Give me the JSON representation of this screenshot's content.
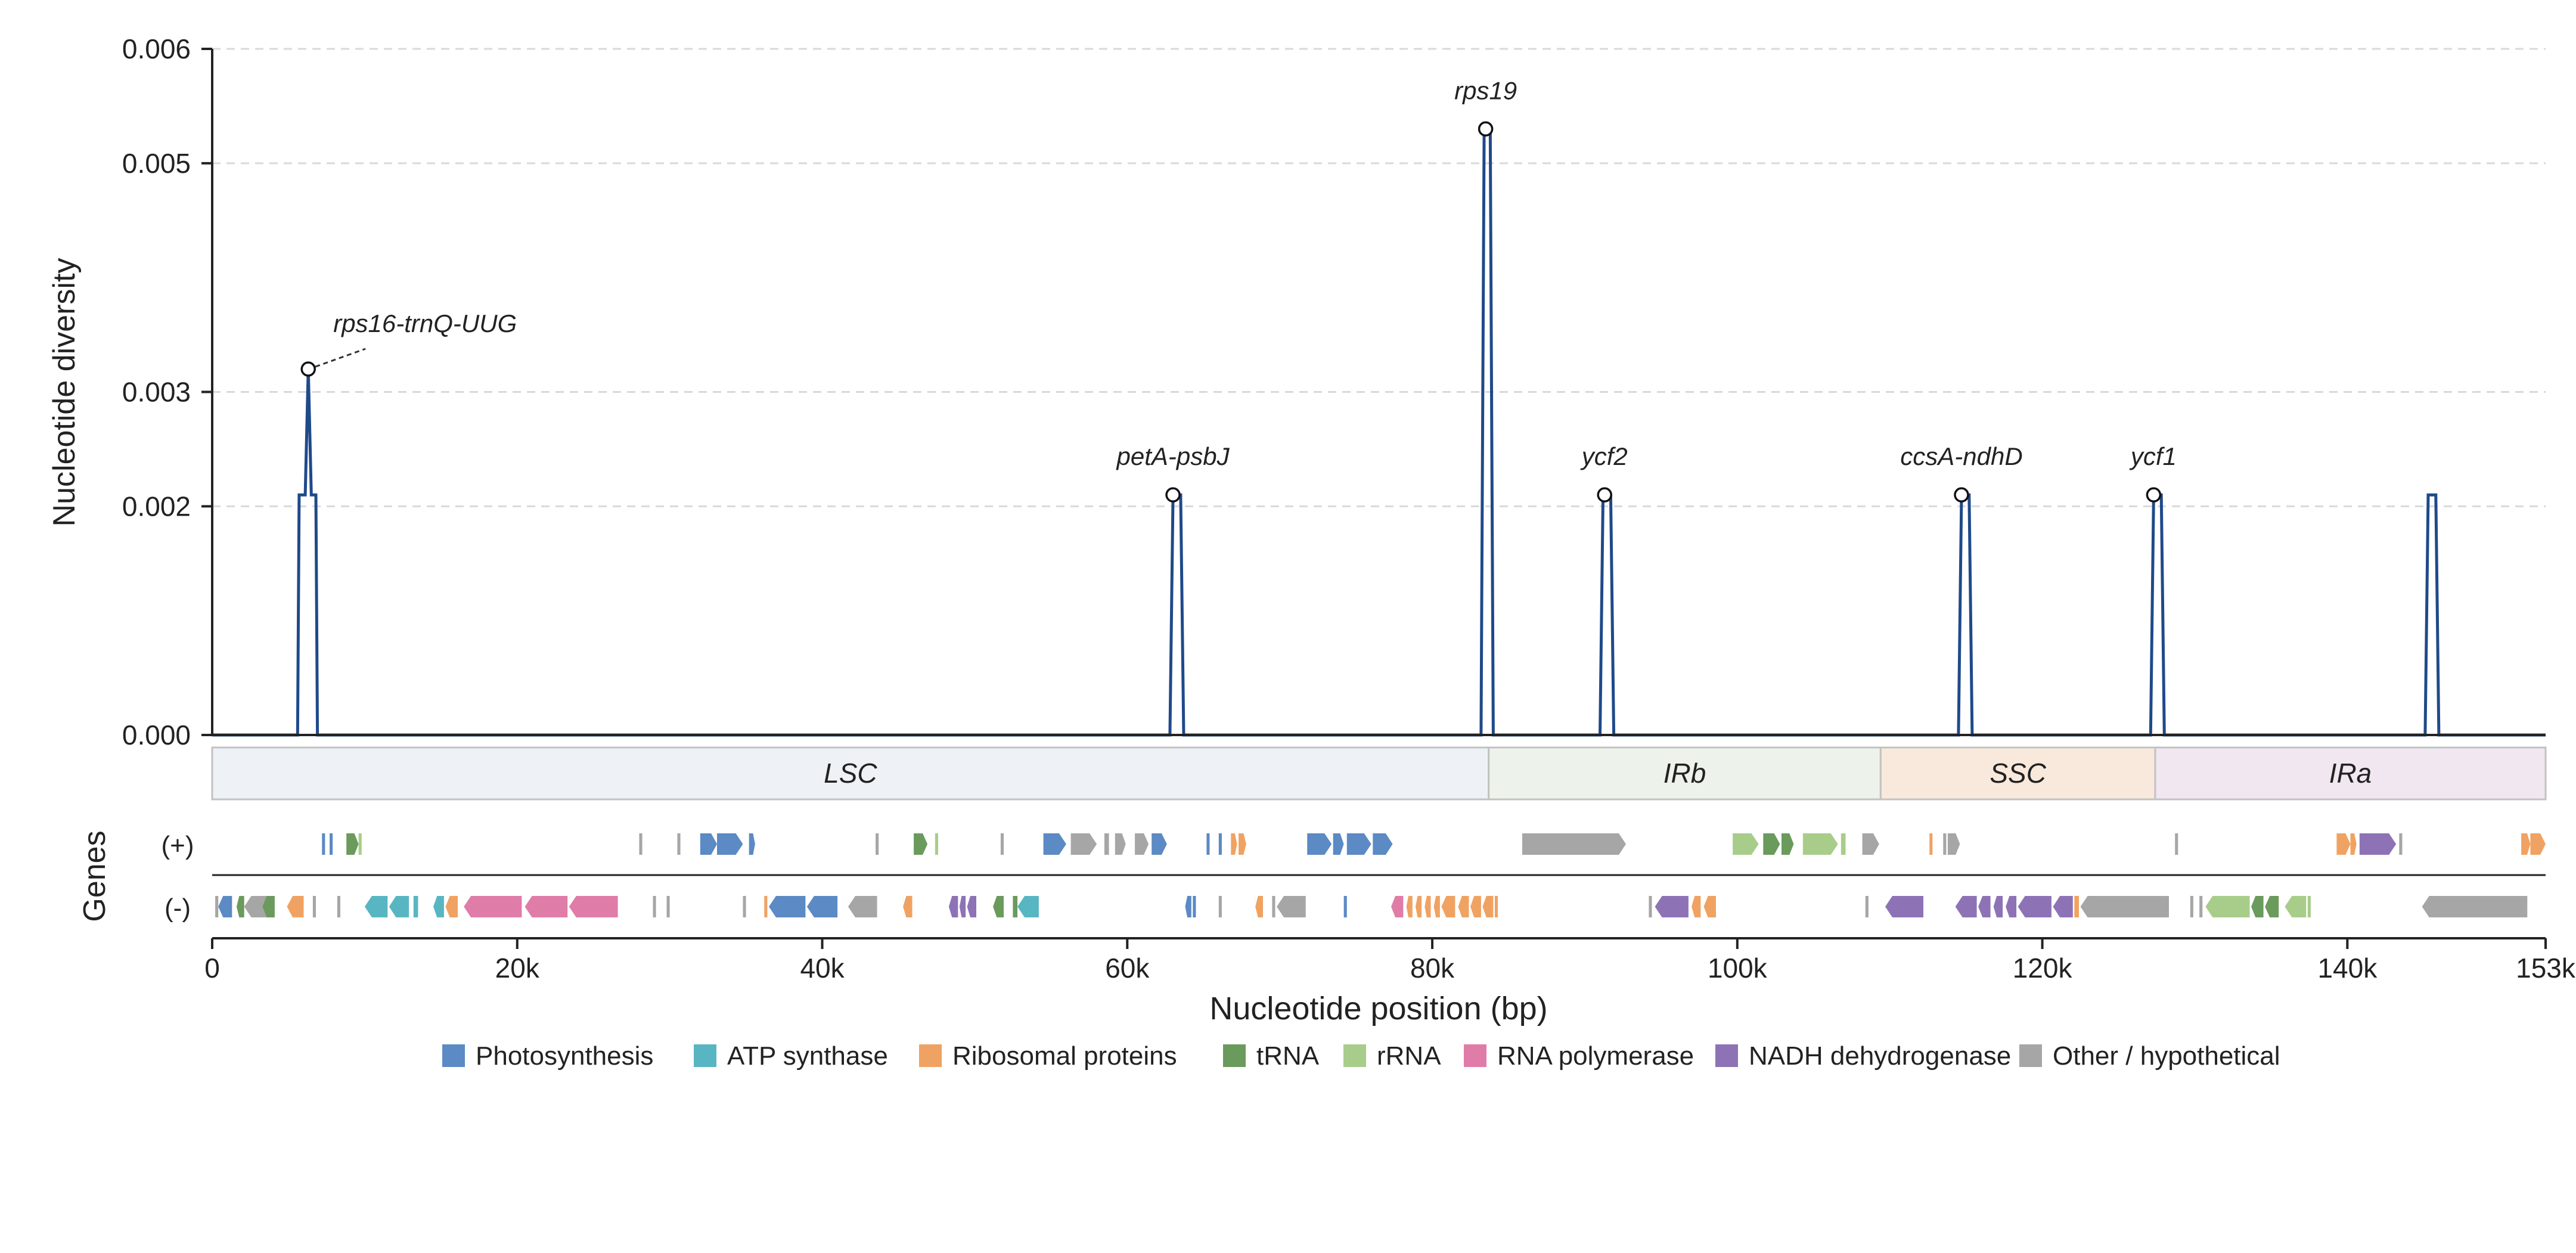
{
  "chart_data": {
    "type": "line",
    "title": "",
    "xlabel": "Nucleotide position (bp)",
    "ylabel": "Nucleotide diversity",
    "genes_label": "Genes",
    "xlim": [
      0,
      153000
    ],
    "ylim": [
      0,
      0.006
    ],
    "x_ticks": [
      0,
      20000,
      40000,
      60000,
      80000,
      100000,
      120000,
      140000,
      153000
    ],
    "x_tick_labels": [
      "0",
      "20k",
      "40k",
      "60k",
      "80k",
      "100k",
      "120k",
      "140k",
      "153k"
    ],
    "y_ticks": [
      0.0,
      0.002,
      0.003,
      0.005,
      0.006
    ],
    "y_tick_labels": [
      "0.000",
      "0.002",
      "0.003",
      "0.005",
      "0.006"
    ],
    "grid": "horizontal dashed",
    "line_color": "#1f4a8a",
    "series": [
      {
        "values": [
          [
            0,
            0
          ],
          [
            5600,
            0
          ],
          [
            5700,
            0.0021
          ],
          [
            6100,
            0.0021
          ],
          [
            6300,
            0.0032
          ],
          [
            6500,
            0.0021
          ],
          [
            6800,
            0.0021
          ],
          [
            6900,
            0
          ],
          [
            62800,
            0
          ],
          [
            63000,
            0.0021
          ],
          [
            63500,
            0.0021
          ],
          [
            63700,
            0
          ],
          [
            83200,
            0
          ],
          [
            83400,
            0.0053
          ],
          [
            83800,
            0.0053
          ],
          [
            84000,
            0
          ],
          [
            91000,
            0
          ],
          [
            91200,
            0.0021
          ],
          [
            91700,
            0.0021
          ],
          [
            91900,
            0
          ],
          [
            114500,
            0
          ],
          [
            114700,
            0.0021
          ],
          [
            115200,
            0.0021
          ],
          [
            115400,
            0
          ],
          [
            127100,
            0
          ],
          [
            127300,
            0.0021
          ],
          [
            127800,
            0.0021
          ],
          [
            128000,
            0
          ],
          [
            145100,
            0
          ],
          [
            145300,
            0.0021
          ],
          [
            145800,
            0.0021
          ],
          [
            146000,
            0
          ],
          [
            153000,
            0
          ]
        ]
      }
    ],
    "peaks": [
      {
        "label": "rps16-trnQ-UUG",
        "x": 6300,
        "y": 0.0032,
        "leader": true
      },
      {
        "label": "petA-psbJ",
        "x": 63000,
        "y": 0.0021,
        "leader": false
      },
      {
        "label": "rps19",
        "x": 83500,
        "y": 0.0053,
        "leader": false
      },
      {
        "label": "ycf2",
        "x": 91300,
        "y": 0.0021,
        "leader": false
      },
      {
        "label": "ccsA-ndhD",
        "x": 114700,
        "y": 0.0021,
        "leader": false
      },
      {
        "label": "ycf1",
        "x": 127300,
        "y": 0.0021,
        "leader": false
      }
    ],
    "regions": [
      {
        "label": "LSC",
        "start": 0,
        "end": 83700,
        "color": "#eef2f6"
      },
      {
        "label": "IRb",
        "start": 83700,
        "end": 109400,
        "color": "#edf3ea"
      },
      {
        "label": "SSC",
        "start": 109400,
        "end": 127400,
        "color": "#f9e9dc"
      },
      {
        "label": "IRa",
        "start": 127400,
        "end": 153000,
        "color": "#f1e7f1"
      }
    ],
    "strand_labels": [
      "(+)",
      "(-)"
    ],
    "categories": [
      {
        "name": "Photosynthesis",
        "color": "#5b8ac4"
      },
      {
        "name": "ATP synthase",
        "color": "#58b6c3"
      },
      {
        "name": "Ribosomal proteins",
        "color": "#f0a262"
      },
      {
        "name": "tRNA",
        "color": "#6a9a5c"
      },
      {
        "name": "rRNA",
        "color": "#a8cd8a"
      },
      {
        "name": "RNA polymerase",
        "color": "#e07ca8"
      },
      {
        "name": "NADH dehydrogenase",
        "color": "#8d73b6"
      },
      {
        "name": "Other / hypothetical",
        "color": "#a6a6a6"
      }
    ],
    "genes_plus": [
      {
        "start": 7200,
        "end": 7400,
        "cat": 0
      },
      {
        "start": 7700,
        "end": 7900,
        "cat": 0
      },
      {
        "start": 8800,
        "end": 9600,
        "cat": 3
      },
      {
        "start": 9600,
        "end": 9800,
        "cat": 4
      },
      {
        "start": 28000,
        "end": 28200,
        "cat": 7
      },
      {
        "start": 30500,
        "end": 30700,
        "cat": 7
      },
      {
        "start": 32000,
        "end": 33100,
        "cat": 0
      },
      {
        "start": 33100,
        "end": 34800,
        "cat": 0
      },
      {
        "start": 35200,
        "end": 35600,
        "cat": 0
      },
      {
        "start": 43500,
        "end": 43700,
        "cat": 7
      },
      {
        "start": 46000,
        "end": 46900,
        "cat": 3
      },
      {
        "start": 47400,
        "end": 47600,
        "cat": 4
      },
      {
        "start": 51700,
        "end": 51900,
        "cat": 7
      },
      {
        "start": 54500,
        "end": 56000,
        "cat": 0
      },
      {
        "start": 56300,
        "end": 58000,
        "cat": 7
      },
      {
        "start": 58500,
        "end": 58800,
        "cat": 7
      },
      {
        "start": 59200,
        "end": 59900,
        "cat": 7
      },
      {
        "start": 60500,
        "end": 61400,
        "cat": 7
      },
      {
        "start": 61600,
        "end": 62600,
        "cat": 0
      },
      {
        "start": 65200,
        "end": 65400,
        "cat": 0
      },
      {
        "start": 66000,
        "end": 66200,
        "cat": 0
      },
      {
        "start": 66800,
        "end": 67200,
        "cat": 2
      },
      {
        "start": 67300,
        "end": 67800,
        "cat": 2
      },
      {
        "start": 71800,
        "end": 73400,
        "cat": 0
      },
      {
        "start": 73500,
        "end": 74200,
        "cat": 0
      },
      {
        "start": 74400,
        "end": 76000,
        "cat": 0
      },
      {
        "start": 76100,
        "end": 77400,
        "cat": 0
      },
      {
        "start": 85900,
        "end": 92700,
        "cat": 7
      },
      {
        "start": 99700,
        "end": 101400,
        "cat": 4
      },
      {
        "start": 101700,
        "end": 102800,
        "cat": 3
      },
      {
        "start": 102900,
        "end": 103700,
        "cat": 3
      },
      {
        "start": 104300,
        "end": 106600,
        "cat": 4
      },
      {
        "start": 106800,
        "end": 107100,
        "cat": 4
      },
      {
        "start": 108200,
        "end": 109300,
        "cat": 7
      },
      {
        "start": 112600,
        "end": 112800,
        "cat": 2
      },
      {
        "start": 113500,
        "end": 113700,
        "cat": 7
      },
      {
        "start": 113800,
        "end": 114600,
        "cat": 7
      },
      {
        "start": 128700,
        "end": 128900,
        "cat": 7
      },
      {
        "start": 139300,
        "end": 140200,
        "cat": 2
      },
      {
        "start": 140200,
        "end": 140600,
        "cat": 2
      },
      {
        "start": 140800,
        "end": 143200,
        "cat": 6
      },
      {
        "start": 143400,
        "end": 143600,
        "cat": 7
      },
      {
        "start": 151400,
        "end": 152000,
        "cat": 2
      },
      {
        "start": 152000,
        "end": 153000,
        "cat": 2
      }
    ],
    "genes_minus": [
      {
        "start": 200,
        "end": 400,
        "cat": 7
      },
      {
        "start": 400,
        "end": 1300,
        "cat": 0
      },
      {
        "start": 1600,
        "end": 2100,
        "cat": 3
      },
      {
        "start": 2100,
        "end": 4000,
        "cat": 7
      },
      {
        "start": 3300,
        "end": 4100,
        "cat": 3
      },
      {
        "start": 4900,
        "end": 6000,
        "cat": 2
      },
      {
        "start": 6600,
        "end": 6800,
        "cat": 7
      },
      {
        "start": 8200,
        "end": 8400,
        "cat": 7
      },
      {
        "start": 10000,
        "end": 11500,
        "cat": 1
      },
      {
        "start": 11600,
        "end": 12900,
        "cat": 1
      },
      {
        "start": 13200,
        "end": 13500,
        "cat": 1
      },
      {
        "start": 14500,
        "end": 15200,
        "cat": 1
      },
      {
        "start": 15300,
        "end": 16100,
        "cat": 2
      },
      {
        "start": 16500,
        "end": 20300,
        "cat": 5
      },
      {
        "start": 20500,
        "end": 23300,
        "cat": 5
      },
      {
        "start": 23400,
        "end": 26600,
        "cat": 5
      },
      {
        "start": 28900,
        "end": 29100,
        "cat": 7
      },
      {
        "start": 29800,
        "end": 30000,
        "cat": 7
      },
      {
        "start": 34800,
        "end": 35000,
        "cat": 7
      },
      {
        "start": 36200,
        "end": 36400,
        "cat": 2
      },
      {
        "start": 36500,
        "end": 38900,
        "cat": 0
      },
      {
        "start": 39000,
        "end": 41000,
        "cat": 0
      },
      {
        "start": 41700,
        "end": 43600,
        "cat": 7
      },
      {
        "start": 45300,
        "end": 45900,
        "cat": 2
      },
      {
        "start": 48300,
        "end": 48900,
        "cat": 6
      },
      {
        "start": 49000,
        "end": 49400,
        "cat": 6
      },
      {
        "start": 49500,
        "end": 50100,
        "cat": 6
      },
      {
        "start": 51200,
        "end": 51900,
        "cat": 3
      },
      {
        "start": 52500,
        "end": 52800,
        "cat": 3
      },
      {
        "start": 52800,
        "end": 54200,
        "cat": 1
      },
      {
        "start": 63800,
        "end": 64200,
        "cat": 0
      },
      {
        "start": 64300,
        "end": 64500,
        "cat": 0
      },
      {
        "start": 66000,
        "end": 66200,
        "cat": 7
      },
      {
        "start": 68400,
        "end": 68900,
        "cat": 2
      },
      {
        "start": 69500,
        "end": 69700,
        "cat": 7
      },
      {
        "start": 69800,
        "end": 71700,
        "cat": 7
      },
      {
        "start": 74200,
        "end": 74400,
        "cat": 0
      },
      {
        "start": 77300,
        "end": 78100,
        "cat": 5
      },
      {
        "start": 78300,
        "end": 78700,
        "cat": 2
      },
      {
        "start": 78900,
        "end": 79300,
        "cat": 2
      },
      {
        "start": 79500,
        "end": 79900,
        "cat": 2
      },
      {
        "start": 80100,
        "end": 80500,
        "cat": 2
      },
      {
        "start": 80600,
        "end": 81500,
        "cat": 2
      },
      {
        "start": 81700,
        "end": 82400,
        "cat": 2
      },
      {
        "start": 82500,
        "end": 83200,
        "cat": 2
      },
      {
        "start": 83300,
        "end": 84000,
        "cat": 2
      },
      {
        "start": 84100,
        "end": 84300,
        "cat": 2
      },
      {
        "start": 94200,
        "end": 94400,
        "cat": 7
      },
      {
        "start": 94600,
        "end": 96800,
        "cat": 6
      },
      {
        "start": 97000,
        "end": 97600,
        "cat": 2
      },
      {
        "start": 97800,
        "end": 98600,
        "cat": 2
      },
      {
        "start": 108400,
        "end": 108600,
        "cat": 7
      },
      {
        "start": 109700,
        "end": 112200,
        "cat": 6
      },
      {
        "start": 114300,
        "end": 115700,
        "cat": 6
      },
      {
        "start": 115800,
        "end": 116600,
        "cat": 6
      },
      {
        "start": 116800,
        "end": 117400,
        "cat": 6
      },
      {
        "start": 117600,
        "end": 118300,
        "cat": 6
      },
      {
        "start": 118400,
        "end": 120600,
        "cat": 6
      },
      {
        "start": 120700,
        "end": 122000,
        "cat": 6
      },
      {
        "start": 122100,
        "end": 122400,
        "cat": 2
      },
      {
        "start": 122500,
        "end": 128300,
        "cat": 7
      },
      {
        "start": 129700,
        "end": 129900,
        "cat": 7
      },
      {
        "start": 130300,
        "end": 130500,
        "cat": 7
      },
      {
        "start": 130700,
        "end": 133600,
        "cat": 4
      },
      {
        "start": 133700,
        "end": 134500,
        "cat": 3
      },
      {
        "start": 134600,
        "end": 135500,
        "cat": 3
      },
      {
        "start": 135900,
        "end": 137300,
        "cat": 4
      },
      {
        "start": 137400,
        "end": 137600,
        "cat": 4
      },
      {
        "start": 144900,
        "end": 151800,
        "cat": 7
      }
    ]
  }
}
